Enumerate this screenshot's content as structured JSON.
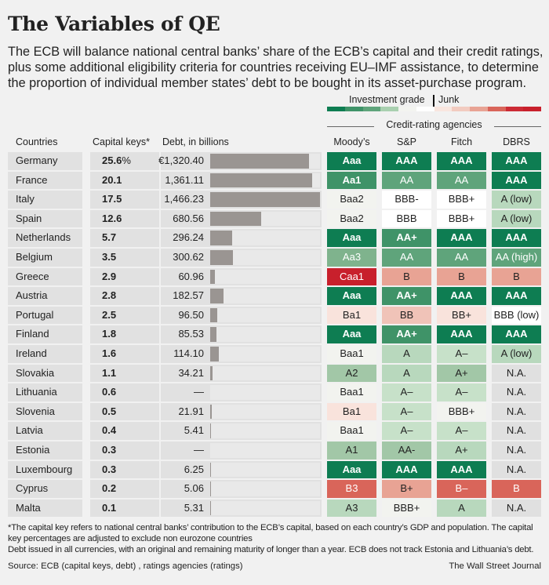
{
  "title": "The Variables of QE",
  "subtitle": "The ECB will balance national central banks’ share of the ECB’s capital and their credit ratings, plus some additional eligibility criteria for countries receiving EU–IMF assistance, to determine the proportion of individual member states’ debt to be bought in its asset-purchase program.",
  "legend": {
    "investment_grade": "Investment grade",
    "junk": "Junk",
    "scale_colors": [
      "#0e7d52",
      "#3f9368",
      "#5fa47b",
      "#a9d0b0",
      "#f3f4f0",
      "#ffffff",
      "#f9e6df",
      "#f2cbc0",
      "#e8a394",
      "#d9655a",
      "#cc2b35",
      "#c8202c"
    ],
    "agencies_title": "Credit-rating agencies"
  },
  "colors": {
    "g1": "#0e7d52",
    "g2": "#3f9368",
    "g2b": "#5fa47b",
    "g3": "#7fb38d",
    "g3l": "#a2c7a7",
    "g4": "#b8d8bd",
    "g4l": "#c7e1c9",
    "n1": "#f2f3ef",
    "w": "#ffffff",
    "r1": "#f9e3dc",
    "r2": "#f0c3b8",
    "r3": "#e8a394",
    "r4": "#d9655a",
    "r5": "#c8202c",
    "na": "#e0e0e0"
  },
  "light_text_levels": [
    "g1",
    "g2",
    "g2b",
    "g3",
    "r4",
    "r5"
  ],
  "chart_data": {
    "type": "table",
    "columns": [
      "Countries",
      "Capital keys*",
      "Debt, in billions",
      "Moody’s",
      "S&P",
      "Fitch",
      "DBRS"
    ],
    "debt_max": 1466.23,
    "rows": [
      {
        "country": "Germany",
        "key": "25.6",
        "pct": "%",
        "debt_label": "€1,320.40",
        "debt": 1320.4,
        "ratings": [
          [
            "Aaa",
            "g1"
          ],
          [
            "AAA",
            "g1"
          ],
          [
            "AAA",
            "g1"
          ],
          [
            "AAA",
            "g1"
          ]
        ]
      },
      {
        "country": "France",
        "key": "20.1",
        "debt_label": "1,361.11",
        "debt": 1361.11,
        "ratings": [
          [
            "Aa1",
            "g2"
          ],
          [
            "AA",
            "g2b"
          ],
          [
            "AA",
            "g2b"
          ],
          [
            "AAA",
            "g1"
          ]
        ]
      },
      {
        "country": "Italy",
        "key": "17.5",
        "debt_label": "1,466.23",
        "debt": 1466.23,
        "ratings": [
          [
            "Baa2",
            "n1"
          ],
          [
            "BBB-",
            "w"
          ],
          [
            "BBB+",
            "w"
          ],
          [
            "A (low)",
            "g4"
          ]
        ]
      },
      {
        "country": "Spain",
        "key": "12.6",
        "debt_label": "680.56",
        "debt": 680.56,
        "ratings": [
          [
            "Baa2",
            "n1"
          ],
          [
            "BBB",
            "w"
          ],
          [
            "BBB+",
            "w"
          ],
          [
            "A (low)",
            "g4"
          ]
        ]
      },
      {
        "country": "Netherlands",
        "key": "5.7",
        "debt_label": "296.24",
        "debt": 296.24,
        "ratings": [
          [
            "Aaa",
            "g1"
          ],
          [
            "AA+",
            "g2"
          ],
          [
            "AAA",
            "g1"
          ],
          [
            "AAA",
            "g1"
          ]
        ]
      },
      {
        "country": "Belgium",
        "key": "3.5",
        "debt_label": "300.62",
        "debt": 300.62,
        "ratings": [
          [
            "Aa3",
            "g3"
          ],
          [
            "AA",
            "g2b"
          ],
          [
            "AA",
            "g2b"
          ],
          [
            "AA (high)",
            "g2b"
          ]
        ]
      },
      {
        "country": "Greece",
        "key": "2.9",
        "debt_label": "60.96",
        "debt": 60.96,
        "ratings": [
          [
            "Caa1",
            "r5"
          ],
          [
            "B",
            "r3"
          ],
          [
            "B",
            "r3"
          ],
          [
            "B",
            "r3"
          ]
        ]
      },
      {
        "country": "Austria",
        "key": "2.8",
        "debt_label": "182.57",
        "debt": 182.57,
        "ratings": [
          [
            "Aaa",
            "g1"
          ],
          [
            "AA+",
            "g2"
          ],
          [
            "AAA",
            "g1"
          ],
          [
            "AAA",
            "g1"
          ]
        ]
      },
      {
        "country": "Portugal",
        "key": "2.5",
        "debt_label": "96.50",
        "debt": 96.5,
        "ratings": [
          [
            "Ba1",
            "r1"
          ],
          [
            "BB",
            "r2"
          ],
          [
            "BB+",
            "r1"
          ],
          [
            "BBB (low)",
            "w"
          ]
        ]
      },
      {
        "country": "Finland",
        "key": "1.8",
        "debt_label": "85.53",
        "debt": 85.53,
        "ratings": [
          [
            "Aaa",
            "g1"
          ],
          [
            "AA+",
            "g2"
          ],
          [
            "AAA",
            "g1"
          ],
          [
            "AAA",
            "g1"
          ]
        ]
      },
      {
        "country": "Ireland",
        "key": "1.6",
        "debt_label": "114.10",
        "debt": 114.1,
        "ratings": [
          [
            "Baa1",
            "n1"
          ],
          [
            "A",
            "g4"
          ],
          [
            "A–",
            "g4l"
          ],
          [
            "A (low)",
            "g4"
          ]
        ]
      },
      {
        "country": "Slovakia",
        "key": "1.1",
        "debt_label": "34.21",
        "debt": 34.21,
        "ratings": [
          [
            "A2",
            "g3l"
          ],
          [
            "A",
            "g4"
          ],
          [
            "A+",
            "g3l"
          ],
          [
            "N.A.",
            "na"
          ]
        ]
      },
      {
        "country": "Lithuania",
        "key": "0.6",
        "debt_label": "—",
        "debt": null,
        "ratings": [
          [
            "Baa1",
            "n1"
          ],
          [
            "A–",
            "g4l"
          ],
          [
            "A–",
            "g4l"
          ],
          [
            "N.A.",
            "na"
          ]
        ]
      },
      {
        "country": "Slovenia",
        "key": "0.5",
        "debt_label": "21.91",
        "debt": 21.91,
        "ratings": [
          [
            "Ba1",
            "r1"
          ],
          [
            "A–",
            "g4l"
          ],
          [
            "BBB+",
            "n1"
          ],
          [
            "N.A.",
            "na"
          ]
        ]
      },
      {
        "country": "Latvia",
        "key": "0.4",
        "debt_label": "5.41",
        "debt": 5.41,
        "ratings": [
          [
            "Baa1",
            "n1"
          ],
          [
            "A–",
            "g4l"
          ],
          [
            "A–",
            "g4l"
          ],
          [
            "N.A.",
            "na"
          ]
        ]
      },
      {
        "country": "Estonia",
        "key": "0.3",
        "debt_label": "—",
        "debt": null,
        "ratings": [
          [
            "A1",
            "g3l"
          ],
          [
            "AA-",
            "g3l"
          ],
          [
            "A+",
            "g4"
          ],
          [
            "N.A.",
            "na"
          ]
        ]
      },
      {
        "country": "Luxembourg",
        "key": "0.3",
        "debt_label": "6.25",
        "debt": 6.25,
        "ratings": [
          [
            "Aaa",
            "g1"
          ],
          [
            "AAA",
            "g1"
          ],
          [
            "AAA",
            "g1"
          ],
          [
            "N.A.",
            "na"
          ]
        ]
      },
      {
        "country": "Cyprus",
        "key": "0.2",
        "debt_label": "5.06",
        "debt": 5.06,
        "ratings": [
          [
            "B3",
            "r4"
          ],
          [
            "B+",
            "r3"
          ],
          [
            "B–",
            "r4"
          ],
          [
            "B",
            "r4"
          ]
        ]
      },
      {
        "country": "Malta",
        "key": "0.1",
        "debt_label": "5.31",
        "debt": 5.31,
        "ratings": [
          [
            "A3",
            "g4"
          ],
          [
            "BBB+",
            "n1"
          ],
          [
            "A",
            "g4"
          ],
          [
            "N.A.",
            "na"
          ]
        ]
      }
    ]
  },
  "footnote": "*The capital key refers to national central banks’ contribution to the ECB’s capital, based on each country’s GDP and population. The capital key percentages are adjusted to exclude non eurozone countries",
  "debt_note": "Debt issued in all currencies, with an original and remaining maturity of longer than a year. ECB does not track Estonia and Lithuania’s debt.",
  "source": "Source: ECB (capital keys, debt) , ratings agencies (ratings)",
  "credit": "The Wall Street Journal"
}
